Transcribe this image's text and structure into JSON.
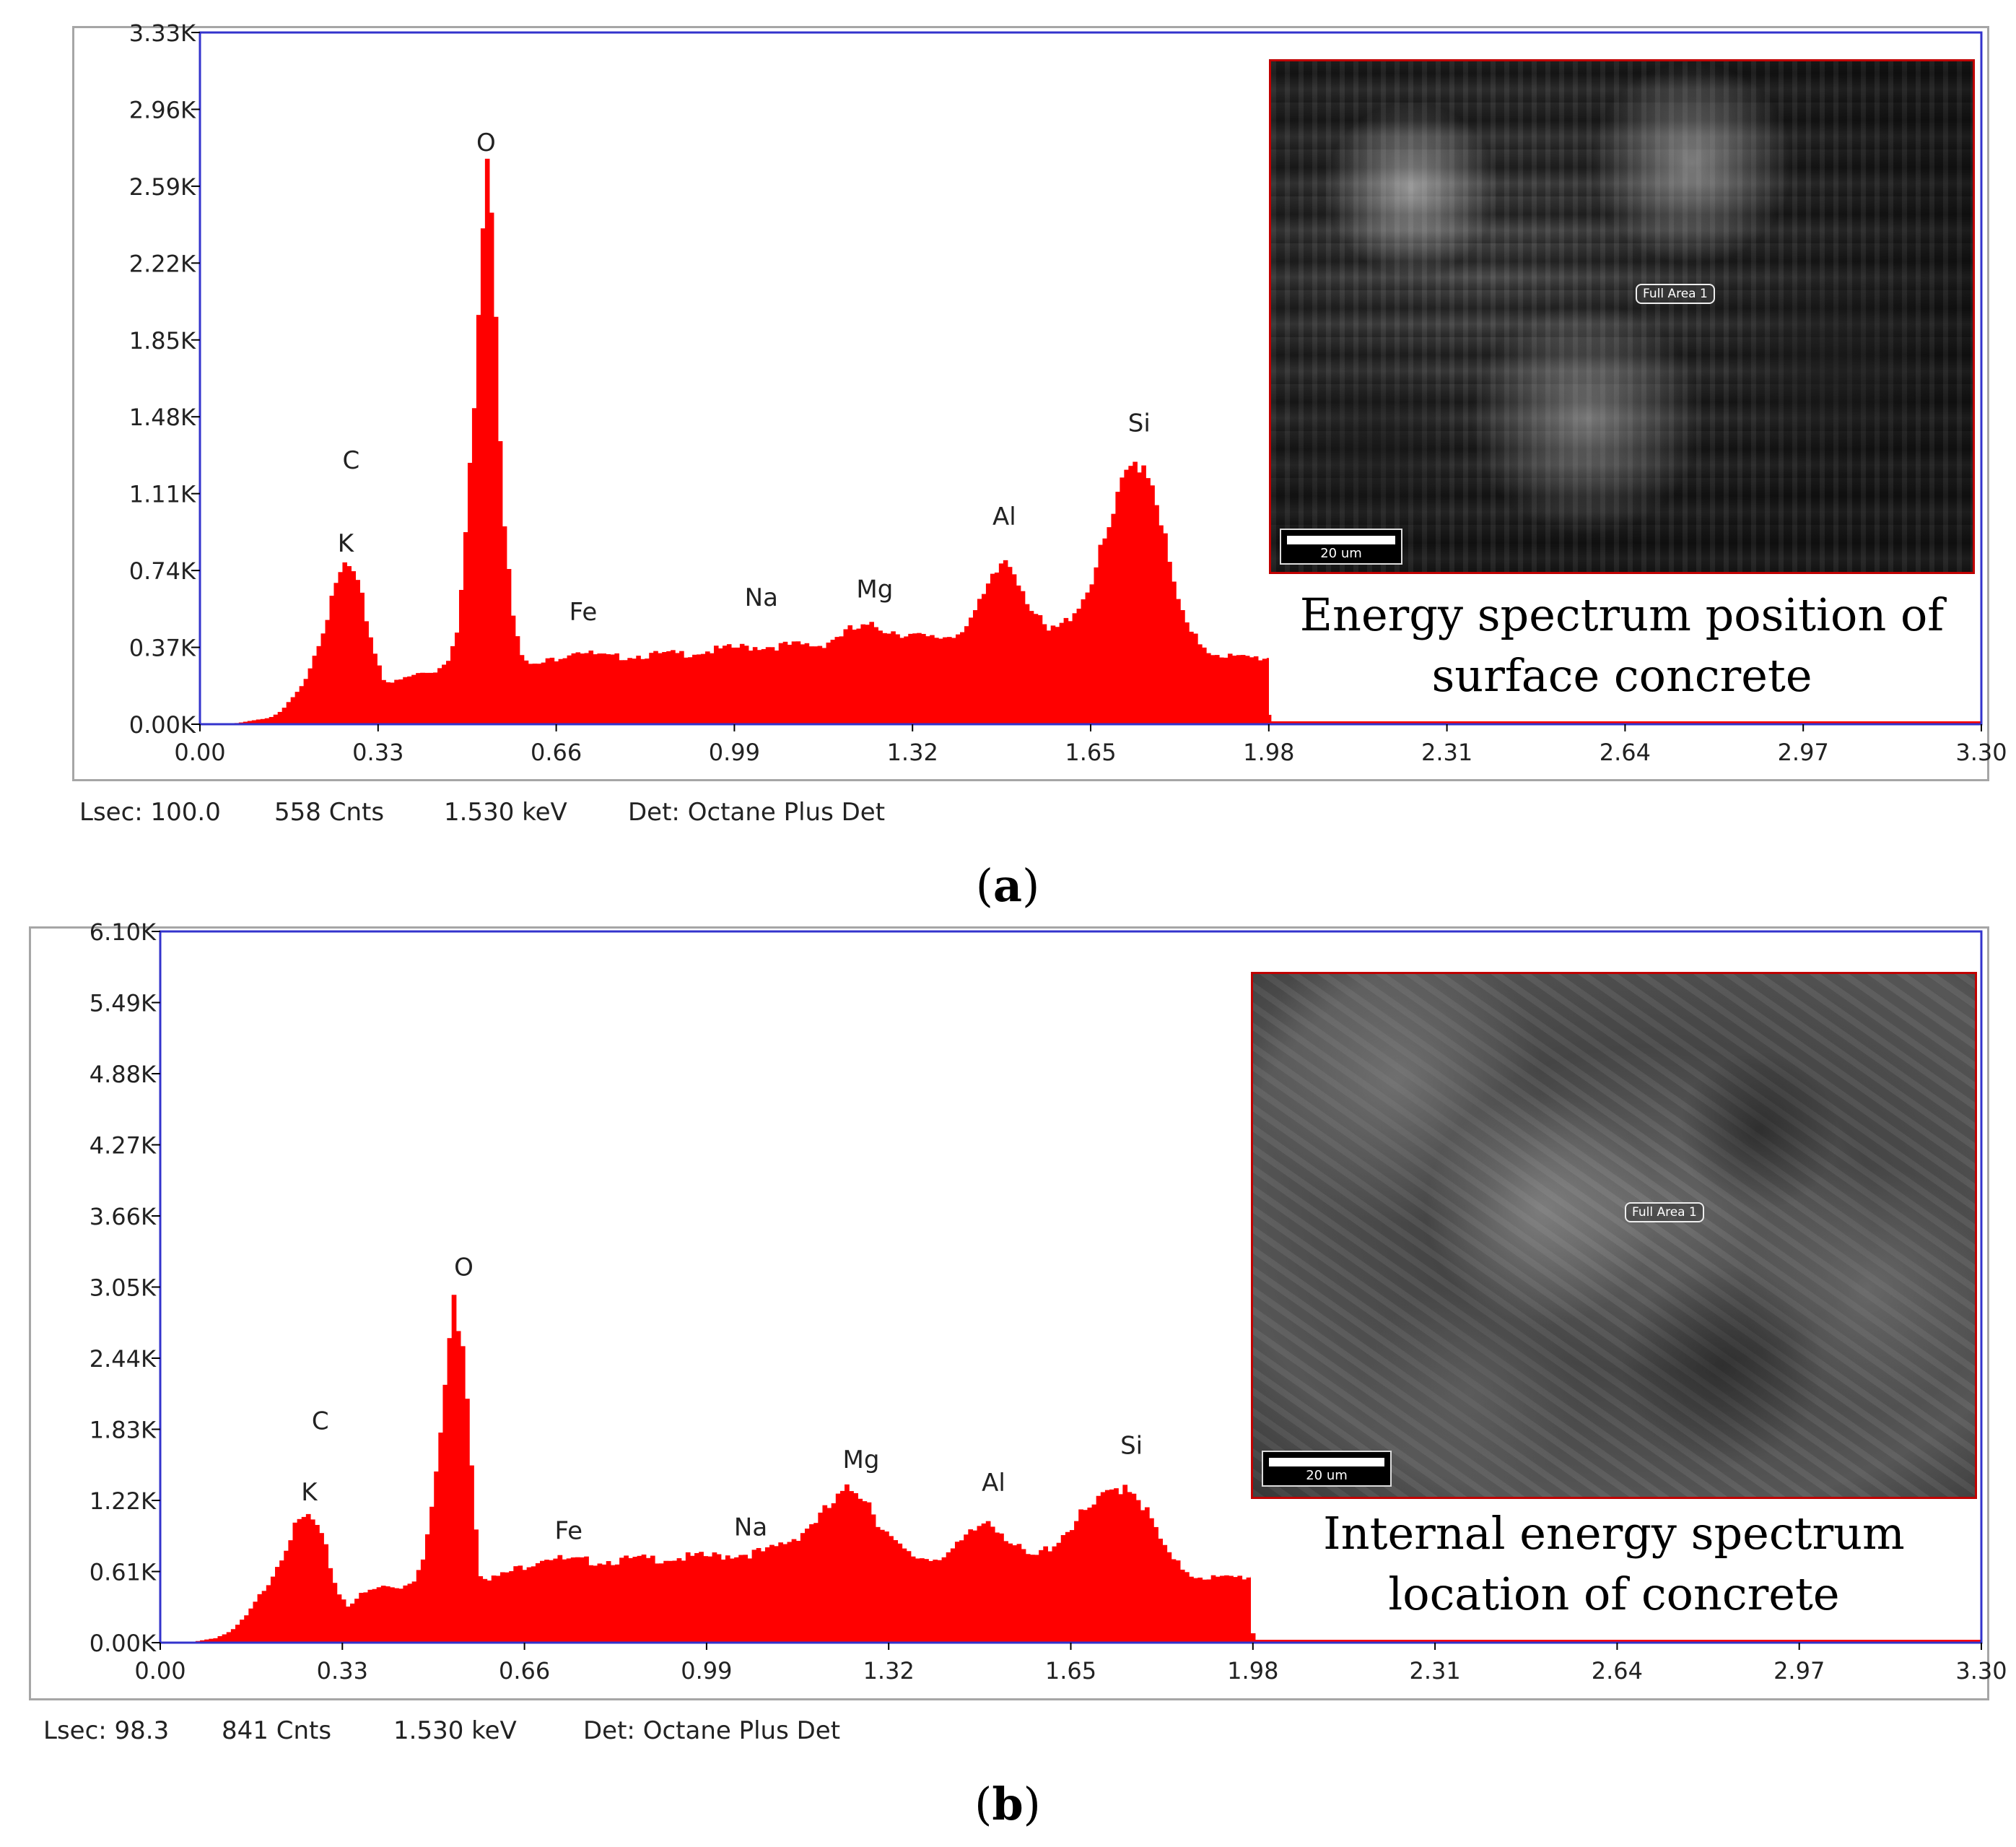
{
  "panels": [
    {
      "label": "a",
      "status": {
        "lsec": "Lsec: 100.0",
        "cnts": "558 Cnts",
        "kev": "1.530 keV",
        "det": "Det: Octane Plus Det"
      },
      "inset": {
        "caption_lines": [
          "Energy spectrum position of",
          "surface concrete"
        ],
        "scale_label": "20 um",
        "area_label": "Full Area 1"
      }
    },
    {
      "label": "b",
      "status": {
        "lsec": "Lsec: 98.3",
        "cnts": "841 Cnts",
        "kev": "1.530 keV",
        "det": "Det: Octane Plus Det"
      },
      "inset": {
        "caption_lines": [
          "Internal energy spectrum",
          "location of concrete"
        ],
        "scale_label": "20 um",
        "area_label": "Full Area 1"
      }
    }
  ],
  "colors": {
    "spectrum": "#ff0000",
    "axis_frame": "#3333cc",
    "inset_border": "#c00000"
  },
  "chart_data": [
    {
      "type": "bar",
      "title": "",
      "xlabel": "",
      "ylabel": "",
      "x_ticks": [
        "0.00",
        "0.33",
        "0.66",
        "0.99",
        "1.32",
        "1.65",
        "1.98",
        "2.31",
        "2.64",
        "2.97",
        "3.30"
      ],
      "y_ticks": [
        "0.00K",
        "0.37K",
        "0.74K",
        "1.11K",
        "1.48K",
        "1.85K",
        "2.22K",
        "2.59K",
        "2.96K",
        "3.33K"
      ],
      "xlim": [
        0,
        3.3
      ],
      "ylim": [
        0,
        3.33
      ],
      "peaks": [
        {
          "element": "C",
          "x": 0.28,
          "y": 1.23
        },
        {
          "element": "K",
          "x": 0.27,
          "y": 0.83
        },
        {
          "element": "O",
          "x": 0.53,
          "y": 2.76
        },
        {
          "element": "Fe",
          "x": 0.71,
          "y": 0.5
        },
        {
          "element": "Na",
          "x": 1.04,
          "y": 0.57
        },
        {
          "element": "Mg",
          "x": 1.25,
          "y": 0.61
        },
        {
          "element": "Al",
          "x": 1.49,
          "y": 0.96
        },
        {
          "element": "Si",
          "x": 1.74,
          "y": 1.41
        }
      ],
      "spectrum": {
        "x": [
          0.0,
          0.05,
          0.08,
          0.1,
          0.13,
          0.15,
          0.18,
          0.2,
          0.22,
          0.24,
          0.26,
          0.27,
          0.28,
          0.3,
          0.32,
          0.34,
          0.36,
          0.4,
          0.44,
          0.46,
          0.48,
          0.5,
          0.51,
          0.52,
          0.53,
          0.54,
          0.55,
          0.56,
          0.58,
          0.6,
          0.62,
          0.66,
          0.7,
          0.72,
          0.76,
          0.8,
          0.9,
          1.0,
          1.1,
          1.15,
          1.2,
          1.25,
          1.3,
          1.35,
          1.4,
          1.44,
          1.47,
          1.49,
          1.51,
          1.54,
          1.57,
          1.6,
          1.64,
          1.68,
          1.71,
          1.73,
          1.74,
          1.76,
          1.78,
          1.8,
          1.83,
          1.87,
          1.92,
          1.98
        ],
        "y": [
          0.0,
          0.0,
          0.01,
          0.02,
          0.03,
          0.06,
          0.15,
          0.25,
          0.4,
          0.55,
          0.72,
          0.77,
          0.74,
          0.6,
          0.38,
          0.22,
          0.2,
          0.24,
          0.26,
          0.32,
          0.5,
          1.2,
          1.6,
          2.2,
          2.64,
          2.58,
          1.9,
          1.1,
          0.55,
          0.3,
          0.28,
          0.32,
          0.36,
          0.34,
          0.32,
          0.33,
          0.34,
          0.37,
          0.38,
          0.38,
          0.45,
          0.47,
          0.44,
          0.41,
          0.43,
          0.55,
          0.7,
          0.8,
          0.74,
          0.56,
          0.44,
          0.48,
          0.62,
          0.9,
          1.15,
          1.26,
          1.28,
          1.22,
          1.0,
          0.7,
          0.45,
          0.35,
          0.32,
          0.32
        ]
      }
    },
    {
      "type": "bar",
      "title": "",
      "xlabel": "",
      "ylabel": "",
      "x_ticks": [
        "0.00",
        "0.33",
        "0.66",
        "0.99",
        "1.32",
        "1.65",
        "1.98",
        "2.31",
        "2.64",
        "2.97",
        "3.30"
      ],
      "y_ticks": [
        "0.00K",
        "0.61K",
        "1.22K",
        "1.83K",
        "2.44K",
        "3.05K",
        "3.66K",
        "4.27K",
        "4.88K",
        "5.49K",
        "6.10K"
      ],
      "xlim": [
        0,
        3.3
      ],
      "ylim": [
        0,
        6.1
      ],
      "peaks": [
        {
          "element": "C",
          "x": 0.29,
          "y": 1.83
        },
        {
          "element": "K",
          "x": 0.27,
          "y": 1.22
        },
        {
          "element": "O",
          "x": 0.55,
          "y": 3.15
        },
        {
          "element": "Fe",
          "x": 0.74,
          "y": 0.89
        },
        {
          "element": "Na",
          "x": 1.07,
          "y": 0.92
        },
        {
          "element": "Mg",
          "x": 1.27,
          "y": 1.5
        },
        {
          "element": "Al",
          "x": 1.51,
          "y": 1.3
        },
        {
          "element": "Si",
          "x": 1.76,
          "y": 1.62
        }
      ],
      "spectrum": {
        "x": [
          0.0,
          0.05,
          0.1,
          0.13,
          0.16,
          0.18,
          0.2,
          0.22,
          0.24,
          0.26,
          0.27,
          0.28,
          0.3,
          0.32,
          0.34,
          0.36,
          0.4,
          0.44,
          0.46,
          0.48,
          0.5,
          0.52,
          0.53,
          0.54,
          0.55,
          0.56,
          0.57,
          0.58,
          0.6,
          0.62,
          0.66,
          0.7,
          0.74,
          0.8,
          0.9,
          1.0,
          1.1,
          1.15,
          1.2,
          1.24,
          1.26,
          1.28,
          1.3,
          1.33,
          1.36,
          1.4,
          1.44,
          1.48,
          1.5,
          1.52,
          1.55,
          1.58,
          1.62,
          1.66,
          1.7,
          1.73,
          1.75,
          1.77,
          1.8,
          1.83,
          1.87,
          1.92,
          1.98
        ],
        "y": [
          0.0,
          0.0,
          0.04,
          0.1,
          0.25,
          0.4,
          0.55,
          0.75,
          0.95,
          1.06,
          1.08,
          1.02,
          0.8,
          0.45,
          0.32,
          0.4,
          0.48,
          0.48,
          0.55,
          0.8,
          1.4,
          2.4,
          2.9,
          2.8,
          2.6,
          1.9,
          1.1,
          0.6,
          0.55,
          0.58,
          0.66,
          0.74,
          0.7,
          0.7,
          0.72,
          0.74,
          0.78,
          0.9,
          1.1,
          1.28,
          1.32,
          1.25,
          1.05,
          0.85,
          0.74,
          0.72,
          0.8,
          0.98,
          1.06,
          0.98,
          0.82,
          0.72,
          0.85,
          1.05,
          1.2,
          1.32,
          1.37,
          1.28,
          1.0,
          0.72,
          0.58,
          0.55,
          0.57
        ]
      }
    }
  ]
}
